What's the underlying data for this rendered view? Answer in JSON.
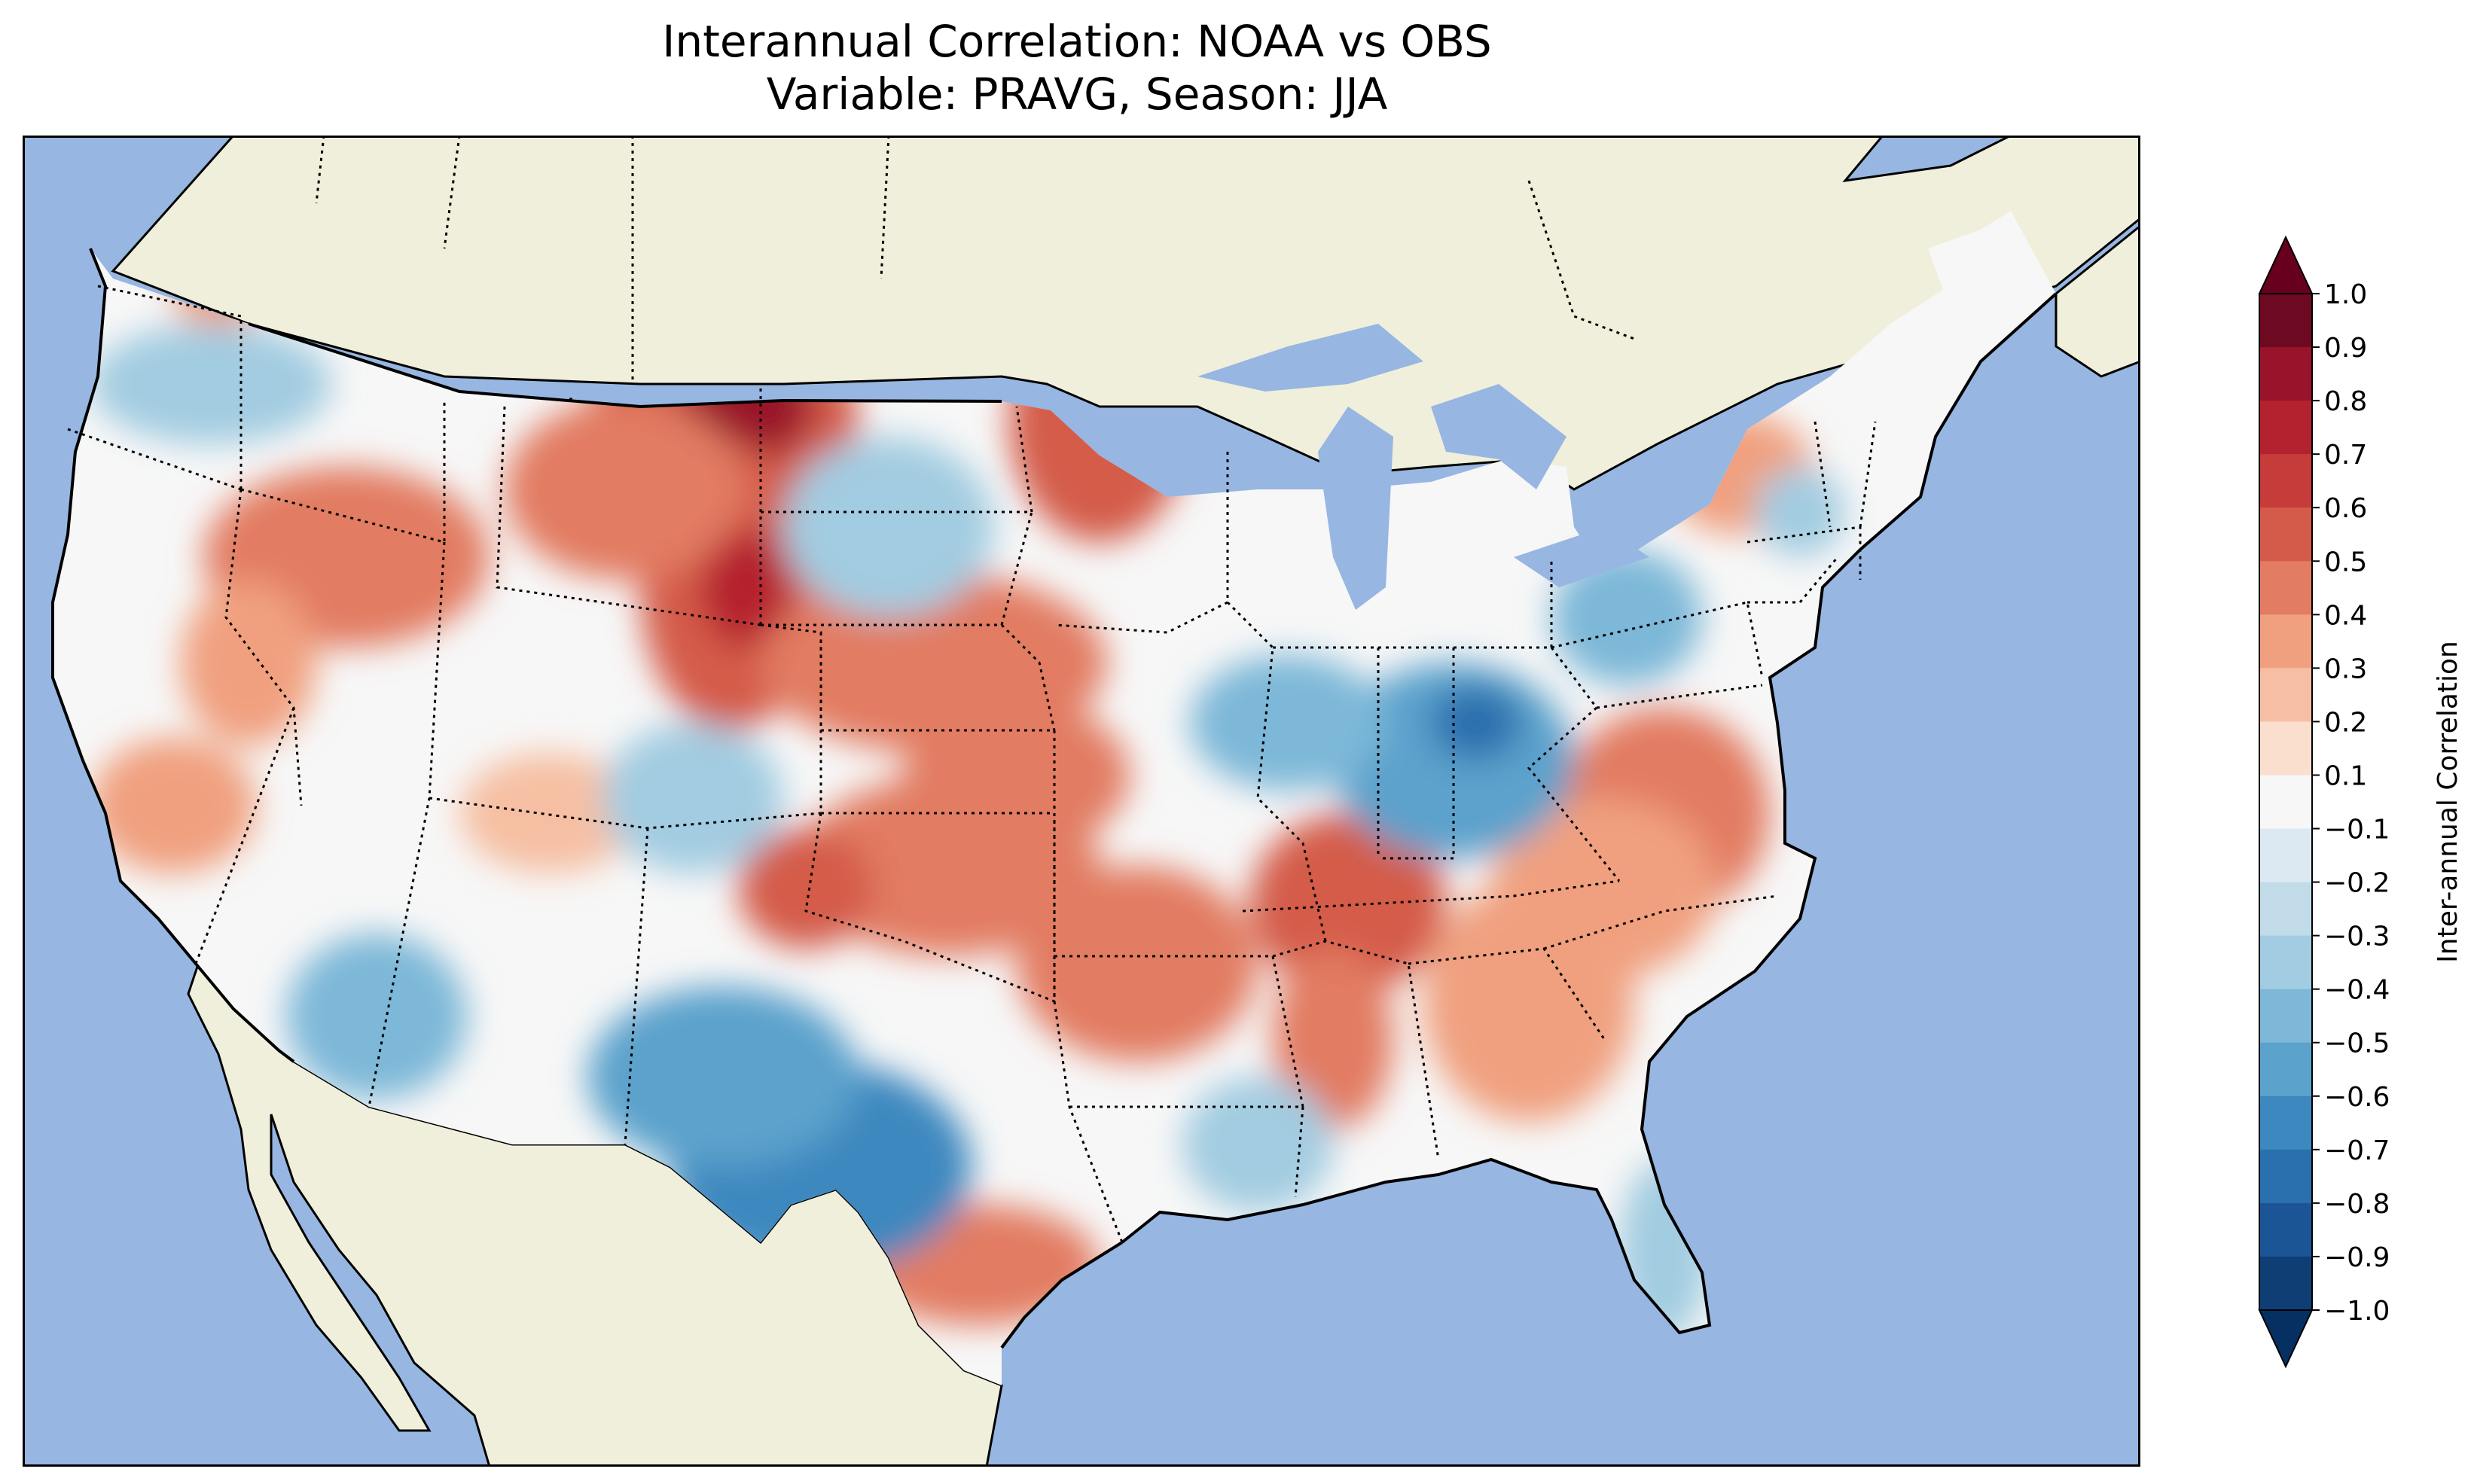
{
  "title_line1": "Interannual Correlation: NOAA vs OBS",
  "title_line2": "Variable: PRAVG, Season: JJA",
  "colorbar": {
    "label": "Inter-annual Correlation",
    "ticks": [
      "1.0",
      "0.9",
      "0.8",
      "0.7",
      "0.6",
      "0.5",
      "0.4",
      "0.3",
      "0.2",
      "0.1",
      "−0.1",
      "−0.2",
      "−0.3",
      "−0.4",
      "−0.5",
      "−0.6",
      "−0.7",
      "−0.8",
      "−0.9",
      "−1.0"
    ],
    "colors_top_to_bottom": [
      "#6d0a22",
      "#99142a",
      "#b5222f",
      "#c63c3a",
      "#d45b4a",
      "#e27c62",
      "#f0a07f",
      "#f6bfa3",
      "#fadfcf",
      "#f7f7f7",
      "#dde9f2",
      "#c2dbe9",
      "#a2cce1",
      "#7db8d8",
      "#5ba2cc",
      "#3d88bf",
      "#2a6fae",
      "#1c5596",
      "#0f3e74"
    ],
    "extend_max_color": "#67001f",
    "extend_min_color": "#053061"
  },
  "map_colors": {
    "ocean": "#97b6e1",
    "land": "#efefdb",
    "coast": "#000000"
  }
}
